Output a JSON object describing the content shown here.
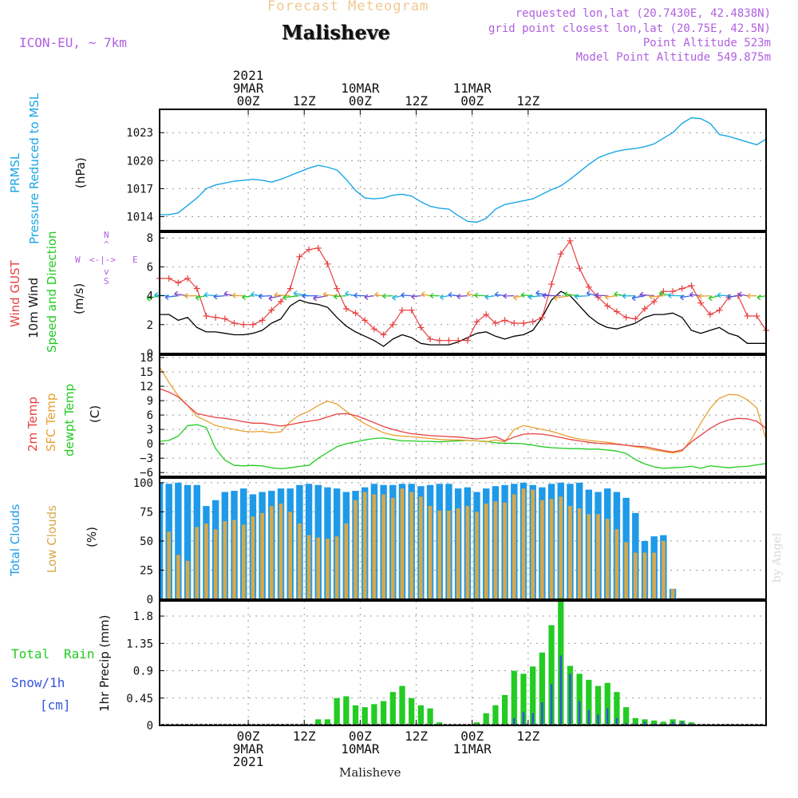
{
  "header": {
    "forecast_title": "Forecast Meteogram",
    "location": "Malisheve",
    "model": "ICON-EU, ~ 7km",
    "requested": "requested lon,lat (20.7430E, 42.4838N)",
    "grid_point": "grid point closest lon,lat (20.75E, 42.5N)",
    "point_altitude": "Point Altitude 523m",
    "model_altitude": "Model Point Altitude 549.875m",
    "watermark": "by Angel",
    "footer_location": "Malisheve"
  },
  "time_axis": {
    "top_labels": [
      {
        "hour": 0,
        "lines": [
          "2021",
          "9MAR",
          "00Z"
        ]
      },
      {
        "hour": 12,
        "lines": [
          "12Z"
        ]
      },
      {
        "hour": 24,
        "lines": [
          "10MAR",
          "00Z"
        ]
      },
      {
        "hour": 36,
        "lines": [
          "12Z"
        ]
      },
      {
        "hour": 48,
        "lines": [
          "11MAR",
          "00Z"
        ]
      },
      {
        "hour": 60,
        "lines": [
          "12Z"
        ]
      }
    ],
    "bottom_labels": [
      {
        "hour": 0,
        "lines": [
          "00Z",
          "9MAR",
          "2021"
        ]
      },
      {
        "hour": 12,
        "lines": [
          "12Z"
        ]
      },
      {
        "hour": 24,
        "lines": [
          "00Z",
          "10MAR"
        ]
      },
      {
        "hour": 36,
        "lines": [
          "12Z"
        ]
      },
      {
        "hour": 48,
        "lines": [
          "00Z",
          "11MAR"
        ]
      },
      {
        "hour": 60,
        "lines": [
          "12Z"
        ]
      }
    ]
  },
  "panel_labels": {
    "pressure": [
      "PRMSL",
      "Pressure Reduced to MSL",
      "(hPa)"
    ],
    "wind": [
      "Wind GUST",
      "10m Wind",
      "Speed and Direction",
      "(m/s)"
    ],
    "compass": {
      "n": "N",
      "s": "S",
      "w": "W",
      "e": "E"
    },
    "temp": [
      "2m Temp",
      "SFC Temp",
      "dewpt Temp",
      "(C)"
    ],
    "clouds": [
      "Total Clouds",
      "Low Clouds",
      "(%)"
    ],
    "precip_left": [
      "Total",
      "Rain",
      "Snow/1h",
      "[cm]"
    ],
    "precip_axis": "1hr Precip (mm)"
  },
  "colors": {
    "pressure": "#1aa6e6",
    "gust": "#e84040",
    "wind": "#000000",
    "t2m": "#e84040",
    "sfc": "#e8a030",
    "dew": "#20cc20",
    "total_clouds": "#1e9ae8",
    "low_clouds": "#d8a848",
    "rain": "#22cc22",
    "snow": "#3355dd",
    "label_purple": "#b060e0",
    "label_orange": "#f0c890"
  },
  "chart_data": [
    {
      "type": "line",
      "name": "pressure",
      "ylim": [
        1012.5,
        1025.5
      ],
      "yticks": [
        1014,
        1017,
        1020,
        1023
      ],
      "xlim": [
        -19,
        111
      ],
      "x": [
        -19,
        -17,
        -15,
        -13,
        -11,
        -9,
        -7,
        -5,
        -3,
        -1,
        1,
        3,
        5,
        7,
        9,
        11,
        13,
        15,
        17,
        19,
        21,
        23,
        25,
        27,
        29,
        31,
        33,
        35,
        37,
        39,
        41,
        43,
        45,
        47,
        49,
        51,
        53,
        55,
        57,
        59,
        61,
        63,
        65,
        67,
        69,
        71,
        73,
        75,
        77,
        79,
        81,
        83,
        85,
        87,
        89,
        91,
        93,
        95,
        97,
        99,
        101,
        103,
        105,
        107,
        109,
        111
      ],
      "values": [
        1014.2,
        1014.2,
        1014.4,
        1015.2,
        1016.0,
        1017.0,
        1017.4,
        1017.6,
        1017.8,
        1017.9,
        1018.0,
        1017.9,
        1017.7,
        1018.0,
        1018.4,
        1018.8,
        1019.2,
        1019.5,
        1019.3,
        1019.0,
        1018.0,
        1016.8,
        1016.0,
        1015.9,
        1016.0,
        1016.3,
        1016.4,
        1016.2,
        1015.6,
        1015.1,
        1014.9,
        1014.8,
        1014.1,
        1013.5,
        1013.4,
        1013.8,
        1014.8,
        1015.3,
        1015.5,
        1015.7,
        1015.9,
        1016.4,
        1016.9,
        1017.3,
        1018.0,
        1018.8,
        1019.6,
        1020.3,
        1020.7,
        1021.0,
        1021.2,
        1021.3,
        1021.5,
        1021.8,
        1022.4,
        1023.0,
        1024.0,
        1024.6,
        1024.5,
        1024.0,
        1022.8,
        1022.6,
        1022.3,
        1022.0,
        1021.7,
        1022.3
      ]
    },
    {
      "type": "line",
      "name": "wind",
      "ylim": [
        0,
        8.4
      ],
      "yticks": [
        0,
        2,
        4,
        6,
        8
      ],
      "x": [
        -19,
        -17,
        -15,
        -13,
        -11,
        -9,
        -7,
        -5,
        -3,
        -1,
        1,
        3,
        5,
        7,
        9,
        11,
        13,
        15,
        17,
        19,
        21,
        23,
        25,
        27,
        29,
        31,
        33,
        35,
        37,
        39,
        41,
        43,
        45,
        47,
        49,
        51,
        53,
        55,
        57,
        59,
        61,
        63,
        65,
        67,
        69,
        71,
        73,
        75,
        77,
        79,
        81,
        83,
        85,
        87,
        89,
        91,
        93,
        95,
        97,
        99,
        101,
        103,
        105,
        107,
        109,
        111
      ],
      "gust": [
        5.2,
        5.2,
        4.9,
        5.2,
        4.5,
        2.6,
        2.5,
        2.4,
        2.1,
        2.0,
        2.0,
        2.3,
        3.0,
        3.6,
        4.5,
        6.7,
        7.2,
        7.3,
        6.2,
        4.5,
        3.1,
        2.8,
        2.3,
        1.7,
        1.3,
        2.0,
        3.0,
        3.0,
        1.8,
        1.0,
        0.9,
        0.9,
        0.9,
        0.9,
        2.2,
        2.7,
        2.1,
        2.3,
        2.1,
        2.1,
        2.2,
        2.5,
        4.8,
        6.9,
        7.8,
        5.9,
        4.6,
        3.9,
        3.3,
        2.9,
        2.5,
        2.4,
        3.1,
        3.6,
        4.3,
        4.3,
        4.5,
        4.7,
        3.5,
        2.7,
        3.0,
        3.9,
        4.0,
        2.6,
        2.6,
        1.6
      ],
      "speed": [
        2.7,
        2.7,
        2.3,
        2.5,
        1.8,
        1.5,
        1.5,
        1.4,
        1.3,
        1.3,
        1.4,
        1.6,
        2.1,
        2.4,
        3.3,
        3.7,
        3.5,
        3.4,
        3.2,
        2.5,
        1.9,
        1.5,
        1.2,
        0.9,
        0.5,
        1.0,
        1.3,
        1.1,
        0.7,
        0.6,
        0.6,
        0.6,
        0.8,
        1.1,
        1.4,
        1.5,
        1.2,
        1.0,
        1.2,
        1.3,
        1.6,
        2.5,
        3.7,
        4.3,
        4.0,
        3.3,
        2.6,
        2.1,
        1.8,
        1.7,
        1.9,
        2.1,
        2.5,
        2.7,
        2.7,
        2.8,
        2.5,
        1.6,
        1.4,
        1.6,
        1.8,
        1.4,
        1.2,
        0.7,
        0.7,
        0.7
      ]
    },
    {
      "type": "line",
      "name": "temperature",
      "ylim": [
        -6.8,
        18.5
      ],
      "yticks": [
        -6,
        -3,
        0,
        3,
        6,
        9,
        12,
        15,
        18
      ],
      "x": [
        -19,
        -17,
        -15,
        -13,
        -11,
        -9,
        -7,
        -5,
        -3,
        -1,
        1,
        3,
        5,
        7,
        9,
        11,
        13,
        15,
        17,
        19,
        21,
        23,
        25,
        27,
        29,
        31,
        33,
        35,
        37,
        39,
        41,
        43,
        45,
        47,
        49,
        51,
        53,
        55,
        57,
        59,
        61,
        63,
        65,
        67,
        69,
        71,
        73,
        75,
        77,
        79,
        81,
        83,
        85,
        87,
        89,
        91,
        93,
        95,
        97,
        99,
        101,
        103,
        105,
        107,
        109,
        111
      ],
      "t2m": [
        11.5,
        10.8,
        9.8,
        8.0,
        6.3,
        5.9,
        5.5,
        5.3,
        5.0,
        4.6,
        4.3,
        4.3,
        4.0,
        3.7,
        4.0,
        4.4,
        4.7,
        5.0,
        5.6,
        6.2,
        6.3,
        5.9,
        5.2,
        4.4,
        3.6,
        3.0,
        2.5,
        2.1,
        1.9,
        1.7,
        1.6,
        1.5,
        1.4,
        1.2,
        1.0,
        1.2,
        1.5,
        0.6,
        1.4,
        2.0,
        2.1,
        2.0,
        1.7,
        1.3,
        0.9,
        0.6,
        0.3,
        0.1,
        0.0,
        -0.1,
        -0.3,
        -0.5,
        -0.6,
        -1.0,
        -1.4,
        -1.7,
        -1.3,
        0.4,
        1.8,
        3.2,
        4.3,
        5.0,
        5.3,
        5.2,
        4.7,
        3.2
      ],
      "sfc": [
        16.0,
        12.8,
        10.0,
        8.0,
        5.7,
        4.8,
        3.8,
        3.4,
        3.0,
        2.6,
        2.5,
        2.6,
        2.3,
        2.5,
        4.6,
        6.0,
        6.8,
        8.0,
        8.9,
        8.3,
        6.8,
        5.4,
        4.2,
        3.2,
        2.3,
        1.8,
        1.6,
        1.5,
        1.3,
        1.1,
        0.9,
        0.8,
        0.8,
        0.7,
        0.6,
        0.4,
        0.8,
        0.4,
        3.0,
        3.8,
        3.4,
        3.0,
        2.6,
        2.0,
        1.4,
        1.0,
        0.7,
        0.5,
        0.3,
        0.0,
        -0.3,
        -0.6,
        -0.9,
        -1.3,
        -1.6,
        -1.9,
        -1.5,
        1.0,
        4.3,
        7.4,
        9.5,
        10.3,
        10.2,
        9.2,
        7.5,
        0.9
      ],
      "dew": [
        0.5,
        0.7,
        1.6,
        3.8,
        4.0,
        3.4,
        -1.0,
        -3.4,
        -4.5,
        -4.6,
        -4.5,
        -4.6,
        -5.0,
        -5.2,
        -5.0,
        -4.7,
        -4.5,
        -3.0,
        -1.8,
        -0.6,
        0.0,
        0.4,
        0.8,
        1.1,
        1.2,
        0.9,
        0.6,
        0.6,
        0.5,
        0.5,
        0.4,
        0.5,
        0.6,
        0.7,
        0.6,
        0.5,
        0.2,
        0.1,
        0.1,
        0.0,
        -0.3,
        -0.6,
        -0.8,
        -0.9,
        -1.0,
        -1.0,
        -1.1,
        -1.1,
        -1.3,
        -1.5,
        -2.0,
        -3.3,
        -4.2,
        -4.8,
        -5.1,
        -5.0,
        -4.9,
        -4.7,
        -5.1,
        -4.6,
        -4.8,
        -5.0,
        -4.8,
        -4.7,
        -4.4,
        -4.1
      ]
    },
    {
      "type": "bar",
      "name": "clouds",
      "ylim": [
        0,
        104
      ],
      "yticks": [
        0,
        25,
        50,
        75,
        100
      ],
      "x": [
        -19,
        -17,
        -15,
        -13,
        -11,
        -9,
        -7,
        -5,
        -3,
        -1,
        1,
        3,
        5,
        7,
        9,
        11,
        13,
        15,
        17,
        19,
        21,
        23,
        25,
        27,
        29,
        31,
        33,
        35,
        37,
        39,
        41,
        43,
        45,
        47,
        49,
        51,
        53,
        55,
        57,
        59,
        61,
        63,
        65,
        67,
        69,
        71,
        73,
        75,
        77,
        79,
        81,
        83,
        85,
        87,
        89,
        91,
        93,
        95,
        97,
        99,
        101,
        103,
        105,
        107,
        109,
        111
      ],
      "total": [
        100,
        99,
        100,
        98,
        98,
        80,
        85,
        92,
        93,
        95,
        90,
        92,
        93,
        95,
        95,
        98,
        99,
        98,
        96,
        95,
        92,
        93,
        96,
        99,
        98,
        98,
        99,
        99,
        97,
        98,
        99,
        99,
        95,
        96,
        92,
        95,
        97,
        98,
        99,
        100,
        98,
        96,
        99,
        100,
        99,
        100,
        94,
        92,
        95,
        92,
        87,
        74,
        50,
        54,
        55,
        9,
        0,
        0,
        0,
        0,
        0,
        0,
        0,
        0,
        0,
        0
      ],
      "low": [
        58,
        58,
        38,
        33,
        62,
        65,
        60,
        67,
        68,
        64,
        71,
        74,
        80,
        82,
        75,
        65,
        55,
        53,
        52,
        54,
        65,
        85,
        92,
        90,
        90,
        87,
        95,
        92,
        88,
        80,
        76,
        76,
        78,
        80,
        75,
        82,
        84,
        83,
        90,
        95,
        94,
        85,
        86,
        88,
        80,
        78,
        73,
        73,
        69,
        60,
        49,
        40,
        40,
        40,
        50,
        9,
        0,
        0,
        0,
        0,
        0,
        0,
        0,
        0,
        0,
        0
      ]
    },
    {
      "type": "bar",
      "name": "precip",
      "ylim": [
        0,
        2.05
      ],
      "yticks": [
        0,
        0.45,
        0.9,
        1.35,
        1.8
      ],
      "x": [
        -19,
        -17,
        -15,
        -13,
        -11,
        -9,
        -7,
        -5,
        -3,
        -1,
        1,
        3,
        5,
        7,
        9,
        11,
        13,
        15,
        17,
        19,
        21,
        23,
        25,
        27,
        29,
        31,
        33,
        35,
        37,
        39,
        41,
        43,
        45,
        47,
        49,
        51,
        53,
        55,
        57,
        59,
        61,
        63,
        65,
        67,
        69,
        71,
        73,
        75,
        77,
        79,
        81,
        83,
        85,
        87,
        89,
        91,
        93,
        95,
        97,
        99,
        101,
        103,
        105,
        107,
        109,
        111
      ],
      "rain": [
        0,
        0,
        0,
        0,
        0,
        0,
        0,
        0,
        0,
        0,
        0,
        0,
        0,
        0,
        0,
        0,
        0,
        0.1,
        0.1,
        0.45,
        0.48,
        0.33,
        0.3,
        0.35,
        0.4,
        0.55,
        0.65,
        0.45,
        0.33,
        0.28,
        0.05,
        0,
        0,
        0,
        0.05,
        0.2,
        0.33,
        0.5,
        0.9,
        0.85,
        0.97,
        1.2,
        1.65,
        2.1,
        0.98,
        0.85,
        0.75,
        0.65,
        0.7,
        0.55,
        0.3,
        0.12,
        0.1,
        0.08,
        0.06,
        0.1,
        0.08,
        0.05,
        0,
        0,
        0,
        0,
        0,
        0,
        0,
        0
      ],
      "snow": [
        0,
        0,
        0,
        0,
        0,
        0,
        0,
        0,
        0,
        0,
        0,
        0,
        0,
        0,
        0,
        0,
        0,
        0,
        0,
        0,
        0,
        0,
        0,
        0,
        0,
        0,
        0,
        0,
        0,
        0,
        0,
        0,
        0,
        0,
        0,
        0,
        0,
        0,
        0.12,
        0.22,
        0.2,
        0.38,
        0.68,
        1.15,
        0.85,
        0.4,
        0.25,
        0.18,
        0.28,
        0.12,
        0.04,
        0.03,
        0.06,
        0.03,
        0.02,
        0.06,
        0.06,
        0.03,
        0,
        0,
        0,
        0,
        0,
        0,
        0,
        0
      ]
    }
  ]
}
